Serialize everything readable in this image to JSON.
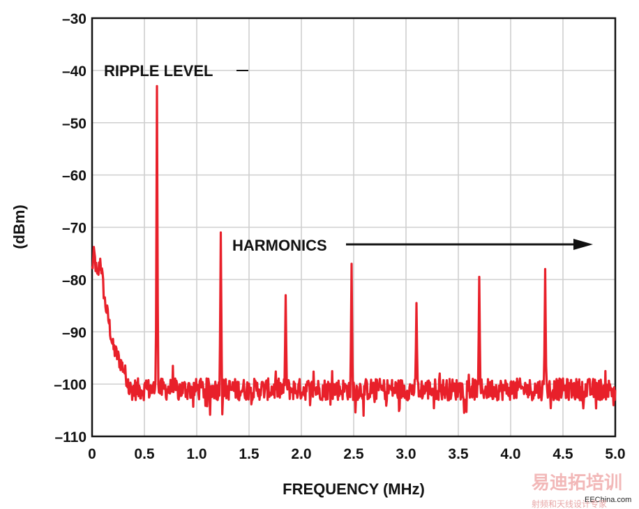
{
  "chart_data": {
    "type": "line",
    "title": "",
    "xlabel": "FREQUENCY (MHz)",
    "ylabel": "(dBm)",
    "xlim": [
      0,
      5.0
    ],
    "ylim": [
      -110,
      -30
    ],
    "x_ticks": [
      0,
      0.5,
      1.0,
      1.5,
      2.0,
      2.5,
      3.0,
      3.5,
      4.0,
      4.5,
      5.0
    ],
    "x_tick_labels": [
      "0",
      "0.5",
      "1.0",
      "1.5",
      "2.0",
      "2.5",
      "3.0",
      "3.5",
      "4.0",
      "4.5",
      "5.0"
    ],
    "y_ticks": [
      -30,
      -40,
      -50,
      -60,
      -70,
      -80,
      -90,
      -100,
      -110
    ],
    "y_tick_labels": [
      "–30",
      "–40",
      "–50",
      "–60",
      "–70",
      "–80",
      "–90",
      "–100",
      "–110"
    ],
    "grid": true,
    "line_color": "#e8202a",
    "noise_floor_dbm": -101,
    "low_frequency_rise": [
      {
        "x": 0.0,
        "y": -78
      },
      {
        "x": 0.02,
        "y": -75
      },
      {
        "x": 0.05,
        "y": -80
      },
      {
        "x": 0.08,
        "y": -76
      },
      {
        "x": 0.12,
        "y": -84
      },
      {
        "x": 0.16,
        "y": -88
      },
      {
        "x": 0.2,
        "y": -93
      },
      {
        "x": 0.25,
        "y": -95
      },
      {
        "x": 0.3,
        "y": -97
      },
      {
        "x": 0.35,
        "y": -100
      }
    ],
    "peaks": [
      {
        "x": 0.62,
        "y": -43
      },
      {
        "x": 1.23,
        "y": -71
      },
      {
        "x": 1.85,
        "y": -83
      },
      {
        "x": 2.48,
        "y": -77
      },
      {
        "x": 3.1,
        "y": -84.5
      },
      {
        "x": 3.7,
        "y": -79.5
      },
      {
        "x": 4.33,
        "y": -78
      }
    ],
    "annotations": [
      {
        "text": "RIPPLE LEVEL"
      },
      {
        "text": "HARMONICS"
      }
    ]
  },
  "watermark": {
    "brand_cn": "易迪拓培训",
    "site": "EEChina.com",
    "sub_cn": "射频和天线设计专家"
  }
}
